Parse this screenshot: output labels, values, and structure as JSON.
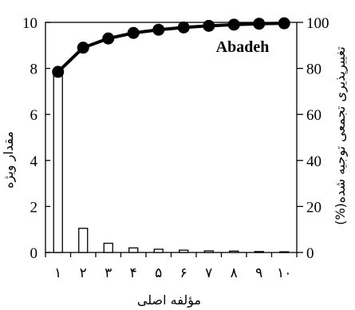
{
  "chart_data": {
    "type": "bar",
    "annotation": "Abadeh",
    "xlabel": "مؤلفه اصلی",
    "ylabel": "مقدار ویژه",
    "y2label": "(%)تغییرپذیری تجمعی توجیه شده",
    "categories": [
      "۱",
      "۲",
      "۳",
      "۴",
      "۵",
      "۶",
      "۷",
      "۸",
      "۹",
      "۱۰"
    ],
    "ylim": [
      0,
      10
    ],
    "yticks": [
      0,
      2,
      4,
      6,
      8,
      10
    ],
    "y2lim": [
      0,
      100
    ],
    "y2ticks": [
      0,
      20,
      40,
      60,
      80,
      100
    ],
    "series": [
      {
        "type": "bar",
        "axis": "left",
        "values": [
          7.85,
          1.05,
          0.4,
          0.2,
          0.14,
          0.1,
          0.07,
          0.06,
          0.04,
          0.03
        ]
      },
      {
        "type": "line",
        "axis": "right",
        "values": [
          78.5,
          89,
          93,
          95.4,
          96.8,
          97.8,
          98.5,
          99,
          99.4,
          99.6
        ]
      }
    ],
    "grid": false
  }
}
